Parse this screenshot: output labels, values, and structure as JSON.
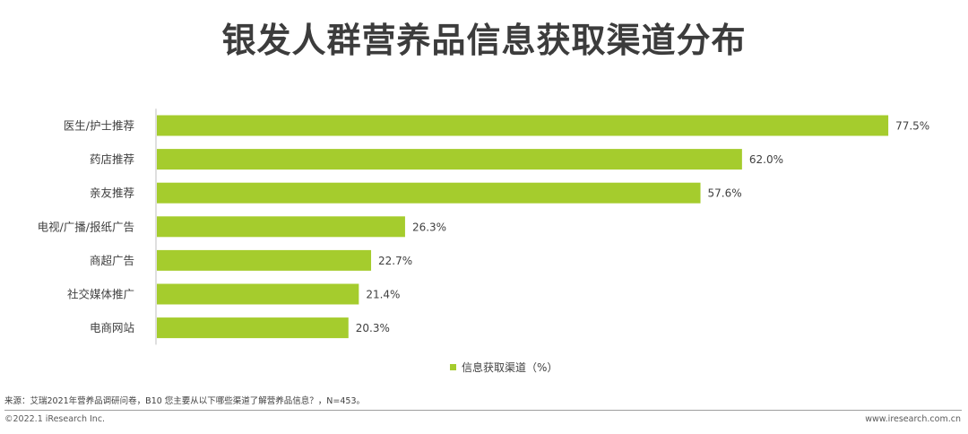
{
  "title": "银发人群营养品信息获取渠道分布",
  "chart_data": {
    "type": "bar",
    "orientation": "horizontal",
    "categories": [
      "医生/护士推荐",
      "药店推荐",
      "亲友推荐",
      "电视/广播/报纸广告",
      "商超广告",
      "社交媒体推广",
      "电商网站"
    ],
    "series": [
      {
        "name": "信息获取渠道（%）",
        "values": [
          77.5,
          62.0,
          57.6,
          26.3,
          22.7,
          21.4,
          20.3
        ],
        "labels": [
          "77.5%",
          "62.0%",
          "57.6%",
          "26.3%",
          "22.7%",
          "21.4%",
          "20.3%"
        ],
        "color": "#a5cc2d"
      }
    ],
    "xlim": [
      0,
      100
    ],
    "grid": false,
    "legend_position": "bottom"
  },
  "legend": {
    "label": "信息获取渠道（%）",
    "color": "#a5cc2d"
  },
  "footer": {
    "source": "来源：艾瑞2021年营养品调研问卷，B10 您主要从以下哪些渠道了解营养品信息？，N=453。",
    "copyright": "©2022.1 iResearch Inc.",
    "website": "www.iresearch.com.cn"
  }
}
